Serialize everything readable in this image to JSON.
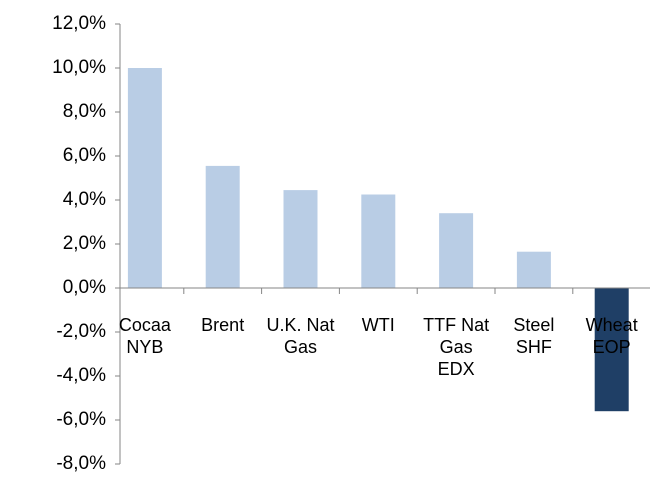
{
  "chart_data": {
    "type": "bar",
    "categories": [
      "Cocaa NYB",
      "Brent",
      "U.K. Nat Gas",
      "WTI",
      "TTF Nat Gas EDX",
      "Steel SHF",
      "Wheat EOP"
    ],
    "values": [
      10.0,
      5.55,
      4.45,
      4.25,
      3.4,
      1.65,
      -5.6
    ],
    "colors": [
      "#b9cde5",
      "#b9cde5",
      "#b9cde5",
      "#b9cde5",
      "#b9cde5",
      "#b9cde5",
      "#1f3f66"
    ],
    "ylim": [
      -8,
      12
    ],
    "yticks": [
      {
        "value": -8,
        "label": "-8,0%"
      },
      {
        "value": -6,
        "label": "-6,0%"
      },
      {
        "value": -4,
        "label": "-4,0%"
      },
      {
        "value": -2,
        "label": "-2,0%"
      },
      {
        "value": 0,
        "label": "0,0%"
      },
      {
        "value": 2,
        "label": "2,0%"
      },
      {
        "value": 4,
        "label": "4,0%"
      },
      {
        "value": 6,
        "label": "6,0%"
      },
      {
        "value": 8,
        "label": "8,0%"
      },
      {
        "value": 10,
        "label": "10,0%"
      },
      {
        "value": 12,
        "label": "12,0%"
      }
    ],
    "grid": false
  }
}
